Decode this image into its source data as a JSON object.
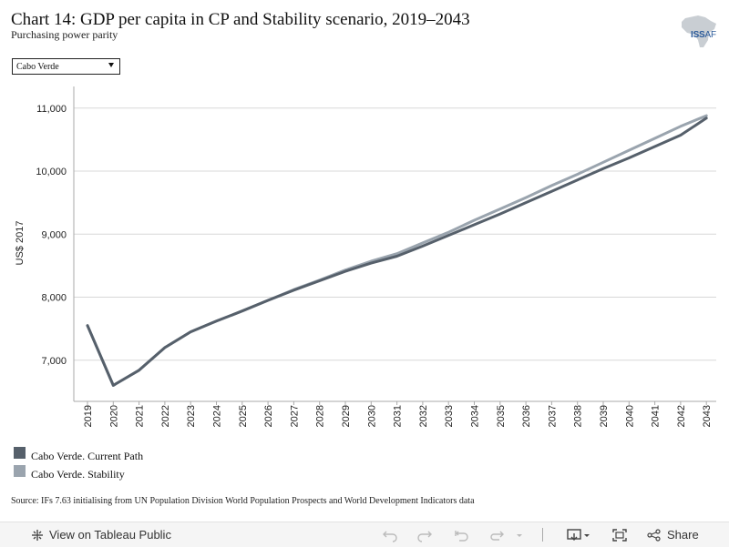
{
  "header": {
    "title": "Chart 14: GDP per capita in CP and Stability scenario, 2019–2043",
    "subtitle": "Purchasing power parity",
    "logo_text": "ISS",
    "logo_suffix": "AF"
  },
  "filter": {
    "selected": "Cabo Verde"
  },
  "chart_data": {
    "type": "line",
    "ylabel": "US$ 2017",
    "ylim": [
      6400,
      11300
    ],
    "yticks": [
      7000,
      8000,
      9000,
      10000,
      11000
    ],
    "ytick_labels": [
      "7,000",
      "8,000",
      "9,000",
      "10,000",
      "11,000"
    ],
    "grid": true,
    "legend_position": "bottom-left",
    "x": [
      "2019",
      "2020",
      "2021",
      "2022",
      "2023",
      "2024",
      "2025",
      "2026",
      "2027",
      "2028",
      "2029",
      "2030",
      "2031",
      "2032",
      "2033",
      "2034",
      "2035",
      "2036",
      "2037",
      "2038",
      "2039",
      "2040",
      "2041",
      "2042",
      "2043"
    ],
    "series": [
      {
        "name": "Cabo Verde. Current Path",
        "color": "#56606b",
        "values": [
          7550,
          6600,
          6840,
          7200,
          7450,
          7620,
          7780,
          7950,
          8110,
          8260,
          8410,
          8540,
          8650,
          8810,
          8980,
          9150,
          9320,
          9500,
          9680,
          9860,
          10040,
          10210,
          10390,
          10570,
          10840
        ]
      },
      {
        "name": "Cabo Verde. Stability",
        "color": "#9aa4ae",
        "values": [
          7550,
          6600,
          6840,
          7200,
          7450,
          7620,
          7780,
          7950,
          8120,
          8270,
          8430,
          8570,
          8690,
          8860,
          9030,
          9220,
          9400,
          9580,
          9770,
          9950,
          10140,
          10330,
          10520,
          10710,
          10880
        ]
      }
    ]
  },
  "legend": {
    "items": [
      {
        "label": "Cabo Verde. Current Path",
        "color": "#56606b"
      },
      {
        "label": "Cabo Verde. Stability",
        "color": "#9aa4ae"
      }
    ]
  },
  "source": "Source: IFs 7.63 initialising from UN Population Division World Population Prospects and World Development Indicators data",
  "footer": {
    "view_label": "View on Tableau Public",
    "share_label": "Share",
    "icons": [
      "undo-icon",
      "redo-icon",
      "revert-icon",
      "refresh-icon",
      "dropdown-icon",
      "download-icon",
      "fullscreen-icon",
      "share-icon"
    ]
  }
}
